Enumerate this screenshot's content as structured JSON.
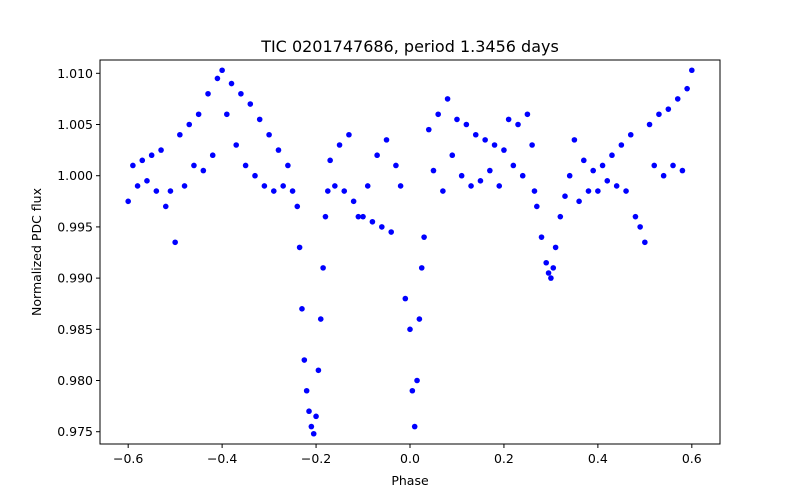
{
  "chart_data": {
    "type": "scatter",
    "title": "TIC 0201747686, period 1.3456 days",
    "xlabel": "Phase",
    "ylabel": "Normalized PDC flux",
    "xlim": [
      -0.66,
      0.66
    ],
    "ylim": [
      0.9738,
      1.0113
    ],
    "xticks": [
      -0.6,
      -0.4,
      -0.2,
      0.0,
      0.2,
      0.4,
      0.6
    ],
    "xtick_labels": [
      "−0.6",
      "−0.4",
      "−0.2",
      "0.0",
      "0.2",
      "0.4",
      "0.6"
    ],
    "yticks": [
      0.975,
      0.98,
      0.985,
      0.99,
      0.995,
      1.0,
      1.005,
      1.01
    ],
    "ytick_labels": [
      "0.975",
      "0.980",
      "0.985",
      "0.990",
      "0.995",
      "1.000",
      "1.005",
      "1.010"
    ],
    "marker_color": "#0000ff",
    "series": [
      {
        "name": "flux",
        "points": [
          [
            -0.6,
            0.9975
          ],
          [
            -0.59,
            1.001
          ],
          [
            -0.58,
            0.999
          ],
          [
            -0.57,
            1.0015
          ],
          [
            -0.56,
            0.9995
          ],
          [
            -0.55,
            1.002
          ],
          [
            -0.54,
            0.9985
          ],
          [
            -0.53,
            1.0025
          ],
          [
            -0.52,
            0.997
          ],
          [
            -0.51,
            0.9985
          ],
          [
            -0.5,
            0.9935
          ],
          [
            -0.49,
            1.004
          ],
          [
            -0.48,
            0.999
          ],
          [
            -0.47,
            1.005
          ],
          [
            -0.46,
            1.001
          ],
          [
            -0.45,
            1.006
          ],
          [
            -0.44,
            1.0005
          ],
          [
            -0.43,
            1.008
          ],
          [
            -0.42,
            1.002
          ],
          [
            -0.41,
            1.0095
          ],
          [
            -0.4,
            1.0103
          ],
          [
            -0.39,
            1.006
          ],
          [
            -0.38,
            1.009
          ],
          [
            -0.37,
            1.003
          ],
          [
            -0.36,
            1.008
          ],
          [
            -0.35,
            1.001
          ],
          [
            -0.34,
            1.007
          ],
          [
            -0.33,
            1.0
          ],
          [
            -0.32,
            1.0055
          ],
          [
            -0.31,
            0.999
          ],
          [
            -0.3,
            1.004
          ],
          [
            -0.29,
            0.9985
          ],
          [
            -0.28,
            1.0025
          ],
          [
            -0.27,
            0.999
          ],
          [
            -0.26,
            1.001
          ],
          [
            -0.25,
            0.9985
          ],
          [
            -0.24,
            0.997
          ],
          [
            -0.235,
            0.993
          ],
          [
            -0.23,
            0.987
          ],
          [
            -0.225,
            0.982
          ],
          [
            -0.22,
            0.979
          ],
          [
            -0.215,
            0.977
          ],
          [
            -0.21,
            0.9755
          ],
          [
            -0.205,
            0.9748
          ],
          [
            -0.2,
            0.9765
          ],
          [
            -0.195,
            0.981
          ],
          [
            -0.19,
            0.986
          ],
          [
            -0.185,
            0.991
          ],
          [
            -0.18,
            0.996
          ],
          [
            -0.175,
            0.9985
          ],
          [
            -0.17,
            1.0015
          ],
          [
            -0.16,
            0.999
          ],
          [
            -0.15,
            1.003
          ],
          [
            -0.14,
            0.9985
          ],
          [
            -0.13,
            1.004
          ],
          [
            -0.12,
            0.9975
          ],
          [
            -0.11,
            0.996
          ],
          [
            -0.1,
            0.996
          ],
          [
            -0.09,
            0.999
          ],
          [
            -0.08,
            0.9955
          ],
          [
            -0.07,
            1.002
          ],
          [
            -0.06,
            0.995
          ],
          [
            -0.05,
            1.0035
          ],
          [
            -0.04,
            0.9945
          ],
          [
            -0.03,
            1.001
          ],
          [
            -0.02,
            0.999
          ],
          [
            -0.01,
            0.988
          ],
          [
            0.0,
            0.985
          ],
          [
            0.005,
            0.979
          ],
          [
            0.01,
            0.9755
          ],
          [
            0.015,
            0.98
          ],
          [
            0.02,
            0.986
          ],
          [
            0.025,
            0.991
          ],
          [
            0.03,
            0.994
          ],
          [
            0.04,
            1.0045
          ],
          [
            0.05,
            1.0005
          ],
          [
            0.06,
            1.006
          ],
          [
            0.07,
            0.9985
          ],
          [
            0.08,
            1.0075
          ],
          [
            0.09,
            1.002
          ],
          [
            0.1,
            1.0055
          ],
          [
            0.11,
            1.0
          ],
          [
            0.12,
            1.005
          ],
          [
            0.13,
            0.999
          ],
          [
            0.14,
            1.004
          ],
          [
            0.15,
            0.9995
          ],
          [
            0.16,
            1.0035
          ],
          [
            0.17,
            1.0005
          ],
          [
            0.18,
            1.003
          ],
          [
            0.19,
            0.999
          ],
          [
            0.2,
            1.0025
          ],
          [
            0.21,
            1.0055
          ],
          [
            0.22,
            1.001
          ],
          [
            0.23,
            1.005
          ],
          [
            0.24,
            1.0
          ],
          [
            0.25,
            1.006
          ],
          [
            0.26,
            1.003
          ],
          [
            0.265,
            0.9985
          ],
          [
            0.27,
            0.997
          ],
          [
            0.28,
            0.994
          ],
          [
            0.29,
            0.9915
          ],
          [
            0.295,
            0.9905
          ],
          [
            0.3,
            0.99
          ],
          [
            0.305,
            0.991
          ],
          [
            0.31,
            0.993
          ],
          [
            0.32,
            0.996
          ],
          [
            0.33,
            0.998
          ],
          [
            0.34,
            1.0
          ],
          [
            0.35,
            1.0035
          ],
          [
            0.36,
            0.9975
          ],
          [
            0.37,
            1.0015
          ],
          [
            0.38,
            0.9985
          ],
          [
            0.39,
            1.0005
          ],
          [
            0.4,
            0.9985
          ],
          [
            0.41,
            1.001
          ],
          [
            0.42,
            0.9995
          ],
          [
            0.43,
            1.002
          ],
          [
            0.44,
            0.999
          ],
          [
            0.45,
            1.003
          ],
          [
            0.46,
            0.9985
          ],
          [
            0.47,
            1.004
          ],
          [
            0.48,
            0.996
          ],
          [
            0.49,
            0.995
          ],
          [
            0.5,
            0.9935
          ],
          [
            0.51,
            1.005
          ],
          [
            0.52,
            1.001
          ],
          [
            0.53,
            1.006
          ],
          [
            0.54,
            1.0
          ],
          [
            0.55,
            1.0065
          ],
          [
            0.56,
            1.001
          ],
          [
            0.57,
            1.0075
          ],
          [
            0.58,
            1.0005
          ],
          [
            0.59,
            1.0085
          ],
          [
            0.6,
            1.0103
          ]
        ]
      }
    ]
  }
}
